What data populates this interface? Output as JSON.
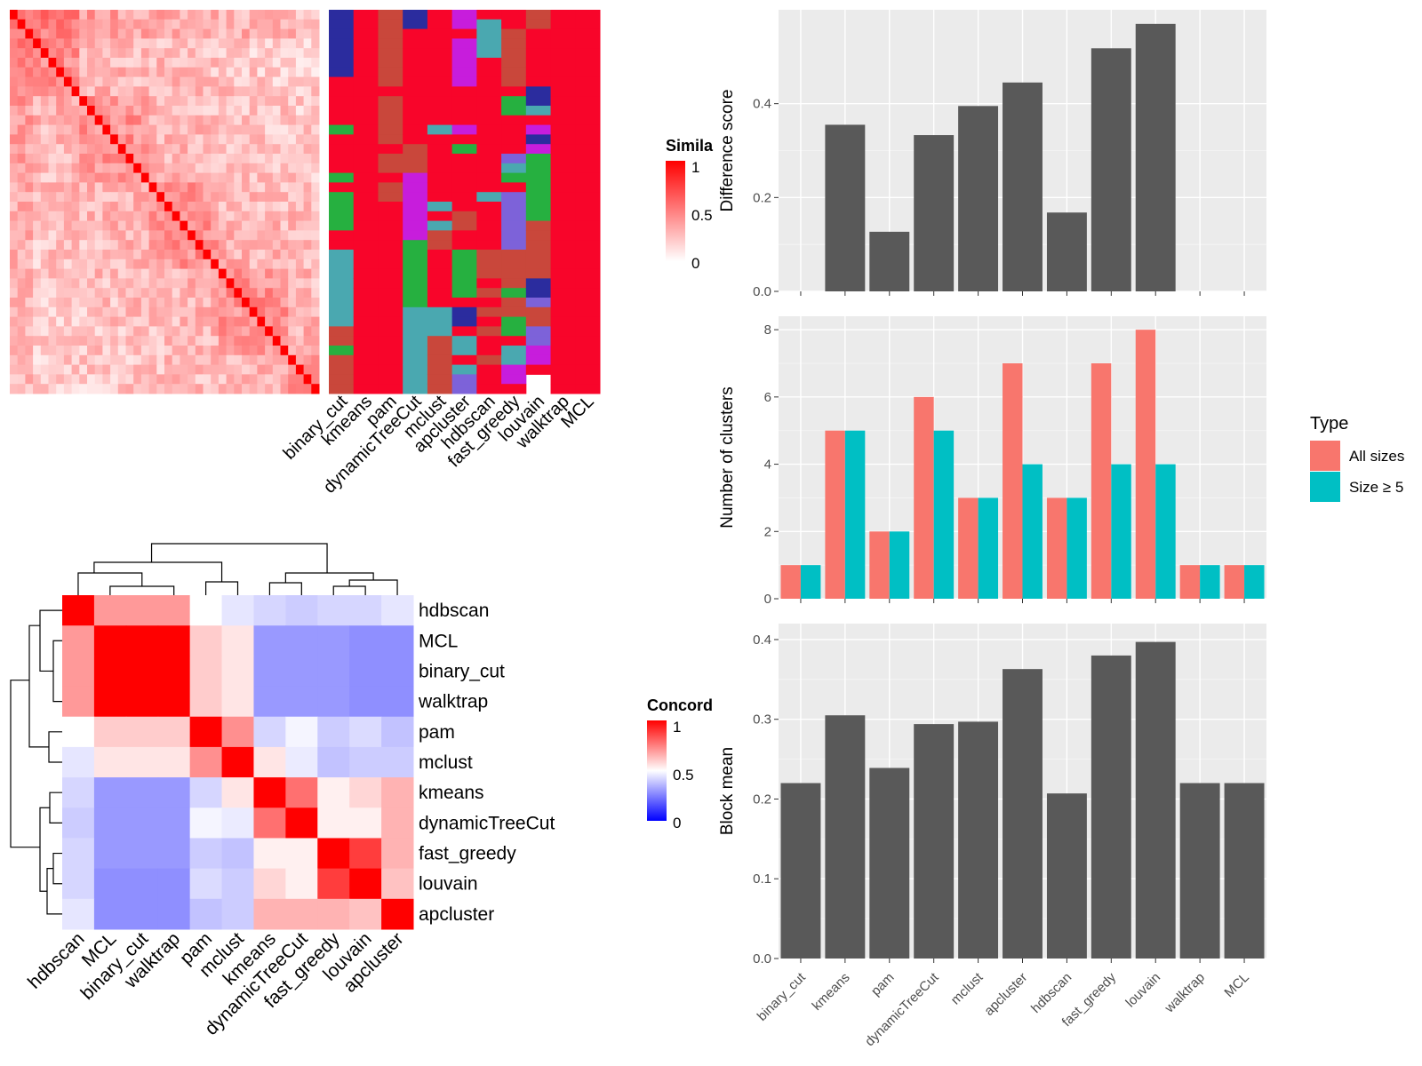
{
  "colors": {
    "heat_high": "#ff0000",
    "heat_low": "#ffffff",
    "conc_low": "#0000ff",
    "bar_fill": "#595959",
    "panel_bg": "#ebebeb",
    "all_sizes": "#f8766d",
    "size_ge5": "#00bfc4"
  },
  "similarity_heatmap": {
    "legend_title": "Simila",
    "legend_ticks": [
      "1",
      "0.5",
      "0"
    ],
    "methods": [
      "binary_cut",
      "kmeans",
      "pam",
      "dynamicTreeCut",
      "mclust",
      "apcluster",
      "hdbscan",
      "fast_greedy",
      "louvain",
      "walktrap",
      "MCL"
    ]
  },
  "concordance_heatmap": {
    "legend_title": "Concord",
    "legend_ticks": [
      "1",
      "0.5",
      "0"
    ],
    "order": [
      "hdbscan",
      "MCL",
      "binary_cut",
      "walktrap",
      "pam",
      "mclust",
      "kmeans",
      "dynamicTreeCut",
      "fast_greedy",
      "louvain",
      "apcluster"
    ],
    "matrix": [
      [
        1.0,
        0.7,
        0.7,
        0.7,
        0.5,
        0.45,
        0.42,
        0.4,
        0.42,
        0.42,
        0.45
      ],
      [
        0.7,
        1.0,
        1.0,
        1.0,
        0.6,
        0.55,
        0.3,
        0.3,
        0.3,
        0.28,
        0.28
      ],
      [
        0.7,
        1.0,
        1.0,
        1.0,
        0.6,
        0.55,
        0.3,
        0.3,
        0.3,
        0.28,
        0.28
      ],
      [
        0.7,
        1.0,
        1.0,
        1.0,
        0.6,
        0.55,
        0.3,
        0.3,
        0.3,
        0.28,
        0.28
      ],
      [
        0.5,
        0.6,
        0.6,
        0.6,
        1.0,
        0.72,
        0.42,
        0.48,
        0.4,
        0.43,
        0.38
      ],
      [
        0.45,
        0.55,
        0.55,
        0.55,
        0.72,
        1.0,
        0.55,
        0.46,
        0.38,
        0.4,
        0.4
      ],
      [
        0.42,
        0.3,
        0.3,
        0.3,
        0.42,
        0.55,
        1.0,
        0.78,
        0.53,
        0.58,
        0.65
      ],
      [
        0.4,
        0.3,
        0.3,
        0.3,
        0.48,
        0.46,
        0.78,
        1.0,
        0.53,
        0.53,
        0.65
      ],
      [
        0.42,
        0.3,
        0.3,
        0.3,
        0.4,
        0.38,
        0.53,
        0.53,
        1.0,
        0.88,
        0.65
      ],
      [
        0.42,
        0.28,
        0.28,
        0.28,
        0.43,
        0.4,
        0.58,
        0.53,
        0.88,
        1.0,
        0.62
      ],
      [
        0.45,
        0.28,
        0.28,
        0.28,
        0.38,
        0.4,
        0.65,
        0.65,
        0.65,
        0.62,
        1.0
      ]
    ]
  },
  "chart_data": [
    {
      "type": "bar",
      "categories": [
        "binary_cut",
        "kmeans",
        "pam",
        "dynamicTreeCut",
        "mclust",
        "apcluster",
        "hdbscan",
        "fast_greedy",
        "louvain",
        "walktrap",
        "MCL"
      ],
      "values": [
        0,
        0.355,
        0.127,
        0.333,
        0.395,
        0.445,
        0.168,
        0.518,
        0.57,
        0,
        0
      ],
      "xlabel": "",
      "ylabel": "Difference score",
      "ylim": [
        0,
        0.6
      ],
      "yticks": [
        "0.0",
        "0.2",
        "0.4"
      ]
    },
    {
      "type": "bar",
      "categories": [
        "binary_cut",
        "kmeans",
        "pam",
        "dynamicTreeCut",
        "mclust",
        "apcluster",
        "hdbscan",
        "fast_greedy",
        "louvain",
        "walktrap",
        "MCL"
      ],
      "series": [
        {
          "name": "All sizes",
          "values": [
            1,
            5,
            2,
            6,
            3,
            7,
            3,
            7,
            8,
            1,
            1
          ]
        },
        {
          "name": "Size ≥ 5",
          "values": [
            1,
            5,
            2,
            5,
            3,
            4,
            3,
            4,
            4,
            1,
            1
          ]
        }
      ],
      "xlabel": "",
      "ylabel": "Number of clusters",
      "ylim": [
        0,
        8.4
      ],
      "yticks": [
        "0",
        "2",
        "4",
        "6",
        "8"
      ],
      "legend_title": "Type",
      "legend_position": "right"
    },
    {
      "type": "bar",
      "categories": [
        "binary_cut",
        "kmeans",
        "pam",
        "dynamicTreeCut",
        "mclust",
        "apcluster",
        "hdbscan",
        "fast_greedy",
        "louvain",
        "walktrap",
        "MCL"
      ],
      "values": [
        0.22,
        0.305,
        0.239,
        0.294,
        0.297,
        0.363,
        0.207,
        0.38,
        0.397,
        0.22,
        0.22
      ],
      "xlabel": "",
      "ylabel": "Block mean",
      "ylim": [
        0,
        0.42
      ],
      "yticks": [
        "0.0",
        "0.1",
        "0.2",
        "0.3",
        "0.4"
      ]
    }
  ]
}
